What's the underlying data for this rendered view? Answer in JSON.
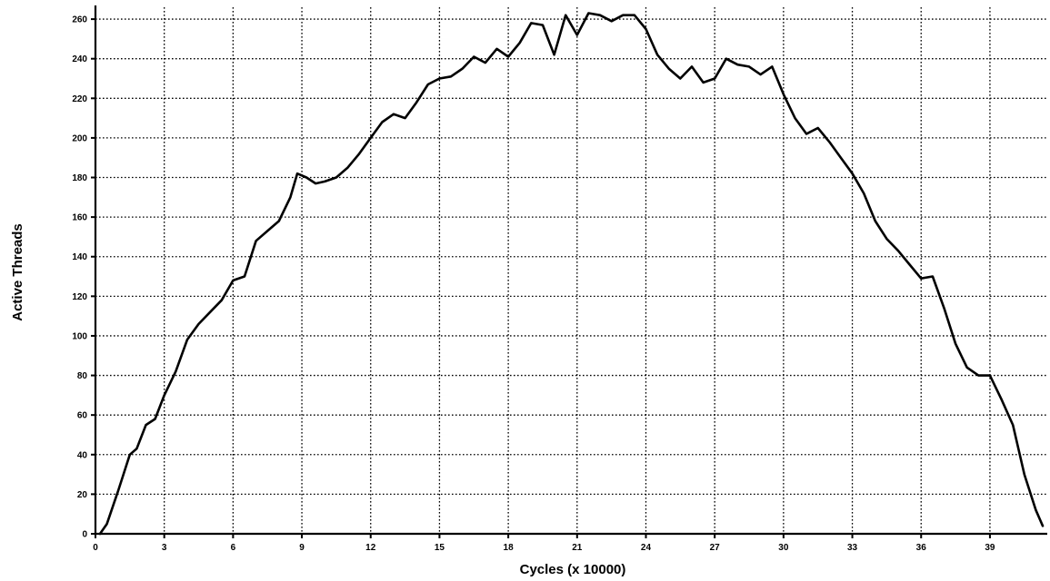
{
  "chart_data": {
    "type": "line",
    "xlabel": "Cycles (x 10000)",
    "ylabel": "Active Threads",
    "xlim": [
      0,
      41.5
    ],
    "ylim": [
      0,
      266
    ],
    "grid": true,
    "x_ticks": [
      0,
      3,
      6,
      9,
      12,
      15,
      18,
      21,
      24,
      27,
      30,
      33,
      36,
      39
    ],
    "x_tick_labels": [
      "0",
      "3",
      "6",
      "9",
      "12",
      "15",
      "18",
      "21",
      "24",
      "27",
      "30",
      "33",
      "36",
      "39"
    ],
    "y_ticks": [
      0,
      20,
      40,
      60,
      80,
      100,
      120,
      140,
      160,
      180,
      200,
      220,
      240,
      260
    ],
    "y_tick_labels": [
      "0",
      "20",
      "40",
      "60",
      "80",
      "100",
      "120",
      "140",
      "160",
      "180",
      "200",
      "220",
      "240",
      "260"
    ],
    "series": [
      {
        "x": [
          0.2,
          0.5,
          1.0,
          1.5,
          1.8,
          2.2,
          2.6,
          3.0,
          3.5,
          4.0,
          4.5,
          5.0,
          5.5,
          6.0,
          6.5,
          7.0,
          7.5,
          8.0,
          8.5,
          8.8,
          9.2,
          9.6,
          10.0,
          10.5,
          11.0,
          11.5,
          12.0,
          12.5,
          13.0,
          13.5,
          14.0,
          14.5,
          15.0,
          15.5,
          16.0,
          16.5,
          17.0,
          17.5,
          18.0,
          18.5,
          19.0,
          19.5,
          20.0,
          20.5,
          21.0,
          21.5,
          22.0,
          22.5,
          23.0,
          23.5,
          24.0,
          24.5,
          25.0,
          25.5,
          26.0,
          26.5,
          27.0,
          27.5,
          28.0,
          28.5,
          29.0,
          29.5,
          30.0,
          30.5,
          31.0,
          31.5,
          32.0,
          32.5,
          33.0,
          33.5,
          34.0,
          34.5,
          35.0,
          35.5,
          36.0,
          36.5,
          37.0,
          37.5,
          38.0,
          38.5,
          39.0,
          39.5,
          40.0,
          40.5,
          41.0,
          41.3
        ],
        "y": [
          0,
          5,
          22,
          40,
          43,
          55,
          58,
          70,
          82,
          98,
          106,
          112,
          118,
          128,
          130,
          148,
          153,
          158,
          170,
          182,
          180,
          177,
          178,
          180,
          185,
          192,
          200,
          208,
          212,
          210,
          218,
          227,
          230,
          231,
          235,
          241,
          238,
          245,
          241,
          248,
          258,
          257,
          242,
          262,
          252,
          263,
          262,
          259,
          262,
          262,
          255,
          242,
          235,
          230,
          236,
          228,
          230,
          240,
          237,
          236,
          232,
          236,
          222,
          210,
          202,
          205,
          198,
          190,
          182,
          172,
          158,
          149,
          143,
          136,
          129,
          130,
          114,
          96,
          84,
          80,
          80,
          68,
          55,
          30,
          12,
          4
        ]
      }
    ]
  }
}
